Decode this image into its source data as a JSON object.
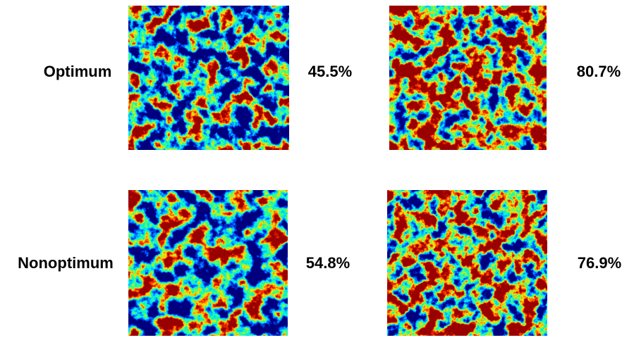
{
  "rows": [
    {
      "label": "Optimum",
      "panels": [
        {
          "value": "45.5%"
        },
        {
          "value": "80.7%"
        }
      ]
    },
    {
      "label": "Nonoptimum",
      "panels": [
        {
          "value": "54.8%"
        },
        {
          "value": "76.9%"
        }
      ]
    }
  ]
}
